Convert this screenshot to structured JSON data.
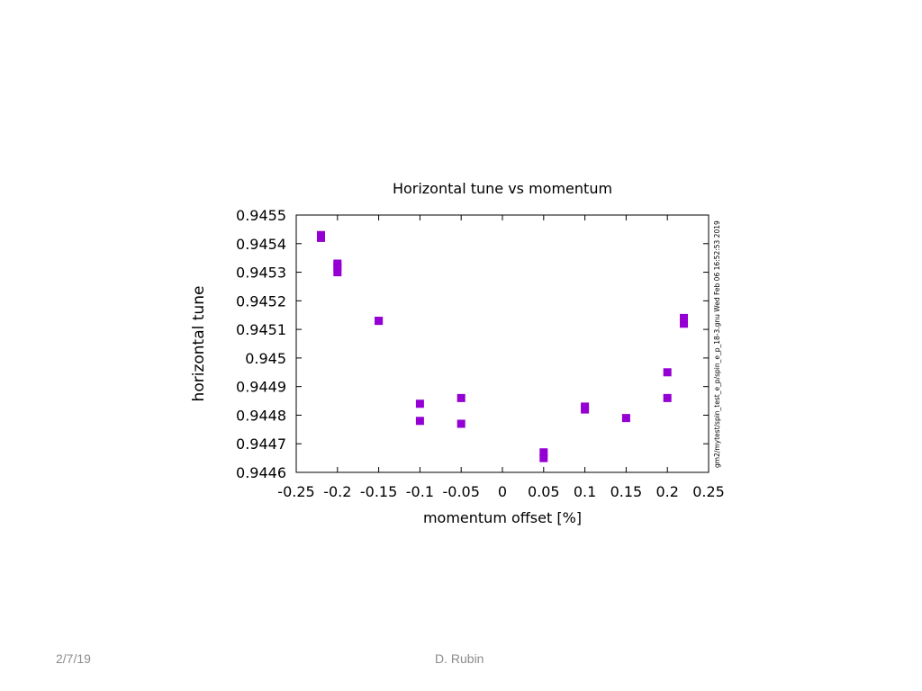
{
  "footer": {
    "date": "2/7/19",
    "author": "D. Rubin"
  },
  "chart_data": {
    "type": "scatter",
    "title": "Horizontal tune vs momentum",
    "xlabel": "momentum offset  [%]",
    "ylabel": "horizontal tune",
    "xlim": [
      -0.25,
      0.25
    ],
    "ylim": [
      0.9446,
      0.9455
    ],
    "xticks": [
      "-0.25",
      "-0.2",
      "-0.15",
      "-0.1",
      "-0.05",
      "0",
      "0.05",
      "0.1",
      "0.15",
      "0.2",
      "0.25"
    ],
    "yticks": [
      "0.9446",
      "0.9447",
      "0.9448",
      "0.9449",
      "0.945",
      "0.9451",
      "0.9452",
      "0.9453",
      "0.9454",
      "0.9455"
    ],
    "grid": false,
    "legend": "none",
    "marker": "filled-square",
    "color": "#9400D3",
    "side_note": "gm2/mytest/spin_test_e_p/spin_e_p_18-3.gnu     Wed Feb 06 16:52:53 2019",
    "points": [
      {
        "x": -0.22,
        "y": 0.94543
      },
      {
        "x": -0.22,
        "y": 0.94542
      },
      {
        "x": -0.2,
        "y": 0.94533
      },
      {
        "x": -0.2,
        "y": 0.94532
      },
      {
        "x": -0.2,
        "y": 0.9453
      },
      {
        "x": -0.15,
        "y": 0.94513
      },
      {
        "x": -0.15,
        "y": 0.94513
      },
      {
        "x": -0.1,
        "y": 0.94484
      },
      {
        "x": -0.1,
        "y": 0.94478
      },
      {
        "x": -0.05,
        "y": 0.94486
      },
      {
        "x": -0.05,
        "y": 0.94477
      },
      {
        "x": 0.05,
        "y": 0.94467
      },
      {
        "x": 0.05,
        "y": 0.94465
      },
      {
        "x": 0.1,
        "y": 0.94483
      },
      {
        "x": 0.1,
        "y": 0.94482
      },
      {
        "x": 0.15,
        "y": 0.94479
      },
      {
        "x": 0.2,
        "y": 0.94495
      },
      {
        "x": 0.2,
        "y": 0.94486
      },
      {
        "x": 0.22,
        "y": 0.94514
      },
      {
        "x": 0.22,
        "y": 0.94512
      }
    ]
  }
}
